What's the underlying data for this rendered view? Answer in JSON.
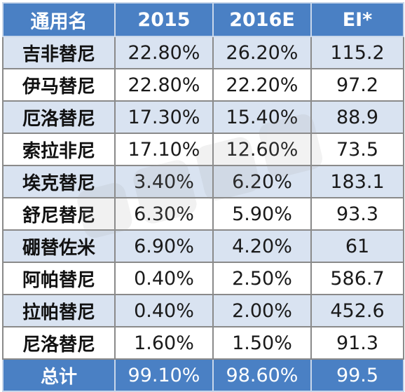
{
  "table": {
    "headers": [
      "通用名",
      "2015",
      "2016E",
      "EI*"
    ],
    "rows": [
      {
        "name": "吉非替尼",
        "y2015": "22.80%",
        "y2016": "26.20%",
        "ei": "115.2"
      },
      {
        "name": "伊马替尼",
        "y2015": "22.80%",
        "y2016": "22.20%",
        "ei": "97.2"
      },
      {
        "name": "厄洛替尼",
        "y2015": "17.30%",
        "y2016": "15.40%",
        "ei": "88.9"
      },
      {
        "name": "索拉非尼",
        "y2015": "17.10%",
        "y2016": "12.60%",
        "ei": "73.5"
      },
      {
        "name": "埃克替尼",
        "y2015": "3.40%",
        "y2016": "6.20%",
        "ei": "183.1"
      },
      {
        "name": "舒尼替尼",
        "y2015": "6.30%",
        "y2016": "5.90%",
        "ei": "93.3"
      },
      {
        "name": "硼替佐米",
        "y2015": "6.90%",
        "y2016": "4.20%",
        "ei": "61"
      },
      {
        "name": "阿帕替尼",
        "y2015": "0.40%",
        "y2016": "2.50%",
        "ei": "586.7"
      },
      {
        "name": "拉帕替尼",
        "y2015": "0.40%",
        "y2016": "2.00%",
        "ei": "452.6"
      },
      {
        "name": "尼洛替尼",
        "y2015": "1.60%",
        "y2016": "1.50%",
        "ei": "91.3"
      }
    ],
    "total": {
      "name": "总计",
      "y2015": "99.10%",
      "y2016": "98.60%",
      "ei": "99.5"
    }
  },
  "colors": {
    "header_bg": "#4a80c4",
    "header_text": "#ffffff",
    "stripe_bg": "#d9e3f1",
    "row_bg": "#ffffff",
    "grid": "#8a8a8a"
  }
}
